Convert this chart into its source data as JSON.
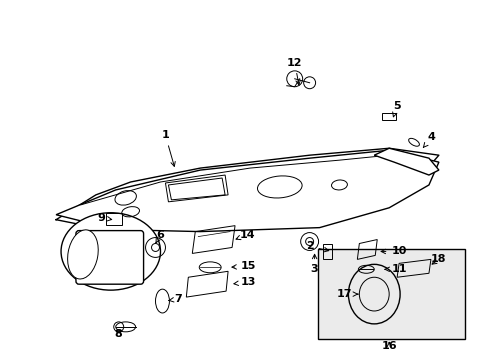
{
  "bg_color": "#ffffff",
  "fig_width": 4.89,
  "fig_height": 3.6,
  "dpi": 100
}
